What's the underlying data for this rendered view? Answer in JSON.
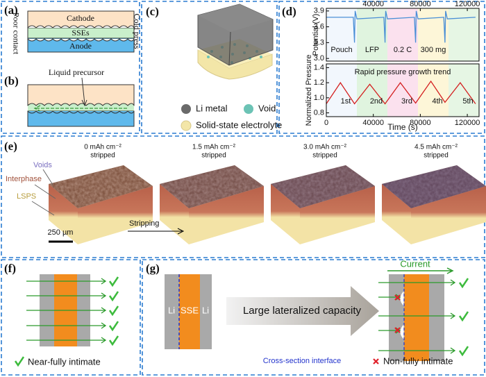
{
  "panels": {
    "a": {
      "label": "(a)",
      "layers": [
        "Cathode",
        "SSEs",
        "Anode"
      ],
      "left_note": "Poor contact",
      "right_note": "Cold press"
    },
    "b": {
      "label": "(b)",
      "annotation": "Liquid precursor"
    },
    "c": {
      "label": "(c)",
      "legend": [
        "Li metal",
        "Void",
        "Solid-state electrolyte"
      ]
    },
    "d": {
      "label": "(d)",
      "x_label": "Time (s)",
      "xlim": [
        0,
        130000
      ],
      "xticks": [
        0,
        40000,
        80000,
        120000
      ],
      "top": {
        "type": "line",
        "y_label": "Potential (V)",
        "ylim": [
          2.95,
          3.95
        ],
        "yticks": [
          {
            "value": 3,
            "label": "3.0"
          },
          3.3,
          3.6,
          3.9
        ],
        "segments": [
          "Pouch",
          "LFP",
          "0.2 C",
          "300 mg"
        ],
        "color": "#4a8fd6",
        "x": [
          0,
          23000,
          24000,
          24500,
          26000,
          49000,
          50000,
          50500,
          52000,
          75000,
          76000,
          76500,
          78000,
          100000,
          101000,
          101500,
          103000,
          127000
        ],
        "values": [
          3.78,
          3.78,
          3.3,
          3.9,
          3.75,
          3.78,
          3.3,
          3.9,
          3.75,
          3.78,
          3.3,
          3.9,
          3.75,
          3.78,
          3.3,
          3.9,
          3.75,
          3.78
        ]
      },
      "bottom": {
        "type": "line",
        "y_label": "Normalized Pressure",
        "ylim": [
          0.75,
          1.45
        ],
        "yticks": [
          0.8,
          {
            "value": 1,
            "label": "1.0"
          },
          1.2,
          1.4
        ],
        "annotation": "Rapid pressure growth trend",
        "cycles": [
          "1st",
          "2nd",
          "3rd",
          "4th",
          "5th"
        ],
        "color": "#d42020",
        "x": [
          0,
          12000,
          24000,
          37000,
          50000,
          63000,
          76000,
          89000,
          101000,
          114000,
          127000
        ],
        "values": [
          0.92,
          1.2,
          0.92,
          1.18,
          0.92,
          1.2,
          0.93,
          1.22,
          0.94,
          1.2,
          0.92
        ]
      }
    },
    "e": {
      "label": "(e)",
      "states": [
        {
          "capacity": "0 mAh cm⁻²",
          "status": "stripped"
        },
        {
          "capacity": "1.5 mAh cm⁻²",
          "status": "stripped"
        },
        {
          "capacity": "3.0 mAh cm⁻²",
          "status": "stripped"
        },
        {
          "capacity": "4.5 mAh cm⁻²",
          "status": "stripped"
        }
      ],
      "layers": [
        "Voids",
        "Interphase",
        "LSPS"
      ],
      "scale_bar": "250 µm",
      "arrow_label": "Stripping"
    },
    "f": {
      "label": "(f)",
      "legend": "Near-fully intimate"
    },
    "g": {
      "label": "(g)",
      "layers": [
        "Li",
        "SSE",
        "Li"
      ],
      "arrow_label": "Large lateralized capacity",
      "interface_label": "Cross-section interface",
      "current_label": "Current",
      "legend": "Non-fully intimate"
    }
  }
}
